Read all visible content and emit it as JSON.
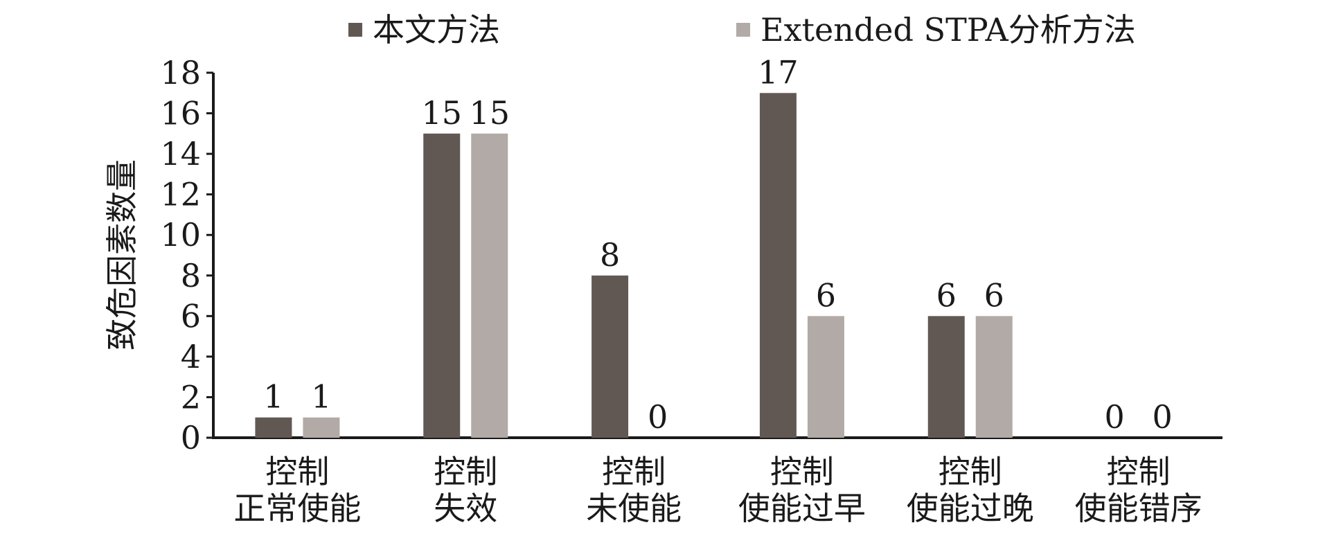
{
  "chart_data": {
    "type": "bar",
    "title": "",
    "xlabel": "",
    "ylabel": "致危因素数量",
    "ylim": [
      0,
      18
    ],
    "yticks": [
      0,
      2,
      4,
      6,
      8,
      10,
      12,
      14,
      16,
      18
    ],
    "categories": [
      [
        "控制",
        "正常使能"
      ],
      [
        "控制",
        "失效"
      ],
      [
        "控制",
        "未使能"
      ],
      [
        "控制",
        "使能过早"
      ],
      [
        "控制",
        "使能过晚"
      ],
      [
        "控制",
        "使能错序"
      ]
    ],
    "series": [
      {
        "name": "本文方法",
        "color": "#625853",
        "values": [
          1,
          15,
          8,
          17,
          6,
          0
        ]
      },
      {
        "name": "Extended STPA分析方法",
        "color": "#b2aaa6",
        "values": [
          1,
          15,
          0,
          6,
          6,
          0
        ]
      }
    ],
    "data_labels": true,
    "grid": false,
    "legend_position": "top"
  }
}
